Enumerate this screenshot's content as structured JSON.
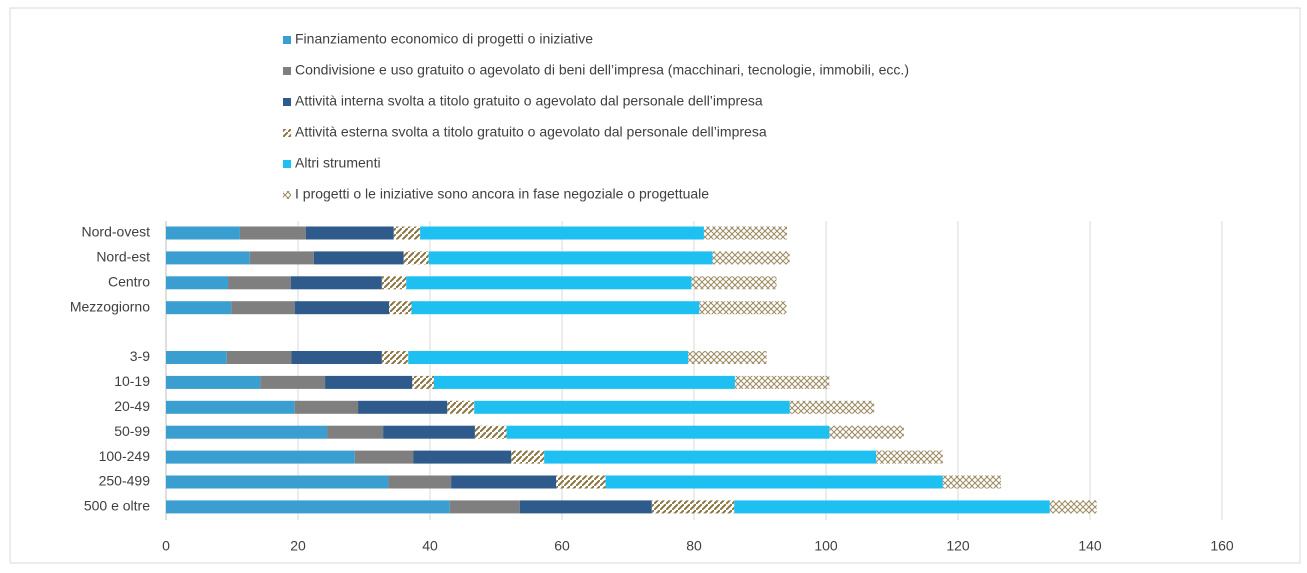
{
  "chart_data": {
    "type": "stacked-barh",
    "categories": [
      "Nord-ovest",
      "Nord-est",
      "Centro",
      "Mezzogiorno",
      null,
      "3-9",
      "10-19",
      "20-49",
      "50-99",
      "100-249",
      "250-499",
      "500 e oltre"
    ],
    "series": [
      {
        "name": "Finanziamento economico di progetti o iniziative",
        "color": "#3b9ed0",
        "values": [
          11.2,
          12.7,
          9.4,
          9.9,
          null,
          9.2,
          14.3,
          19.5,
          24.4,
          28.6,
          33.7,
          43
        ]
      },
      {
        "name": "Condivisione e uso gratuito o agevolato di beni dell’impresa (macchinari, tecnologie, immobili, ecc.)",
        "color": "#7f7f7f",
        "values": [
          10,
          9.7,
          9.5,
          9.6,
          null,
          9.8,
          9.8,
          9.6,
          8.5,
          8.9,
          9.5,
          10.6
        ]
      },
      {
        "name": "Attività  interna svolta a titolo gratuito o agevolato dal personale dell’impresa",
        "color": "#2f5b8c",
        "values": [
          13.3,
          13.6,
          13.8,
          14.3,
          null,
          13.7,
          13.2,
          13.5,
          13.9,
          14.8,
          15.9,
          20
        ]
      },
      {
        "name": "Attività  esterna svolta a titolo gratuito o agevolato dal personale dell’impresa",
        "color": "#8a7440",
        "values": [
          4,
          3.8,
          3.7,
          3.4,
          null,
          4,
          3.3,
          4.1,
          4.8,
          5,
          7.5,
          12.5
        ]
      },
      {
        "name": "Altri strumenti",
        "color": "#1ec0f2",
        "values": [
          43,
          43,
          43.2,
          43.6,
          null,
          42.4,
          45.6,
          47.8,
          48.9,
          50.3,
          51.1,
          47.8
        ]
      },
      {
        "name": "I progetti o le iniziative sono ancora in fase negoziale o progettuale",
        "color": "#9c8a60",
        "values": [
          12.6,
          11.7,
          12.9,
          13.2,
          null,
          11.9,
          14.3,
          12.8,
          11.3,
          10.1,
          8.8,
          7.1
        ]
      }
    ],
    "patterns": [
      "solid",
      "solid",
      "solid",
      "diagonal",
      "solid",
      "cross"
    ],
    "xlim": [
      0,
      160
    ],
    "xticks": [
      0,
      20,
      40,
      60,
      80,
      100,
      120,
      140,
      160
    ],
    "grid": true
  }
}
